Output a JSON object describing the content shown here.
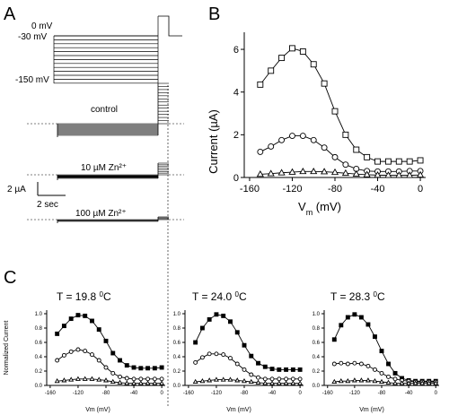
{
  "panel_letters": {
    "a": "A",
    "b": "B",
    "c": "C"
  },
  "panel_a": {
    "voltage_labels": [
      "0 mV",
      "-30 mV",
      "-150 mV"
    ],
    "trace_labels": [
      "control",
      "10 µM Zn²⁺",
      "100 µM Zn²⁺"
    ],
    "scale_current": "2 µA",
    "scale_time": "2 sec"
  },
  "chart_data": [
    {
      "type": "line",
      "panel": "B",
      "xlabel_main": "V",
      "xlabel_sub": "m",
      "xlabel_unit": " (mV)",
      "ylabel": "Current (µA)",
      "xlim": [
        -165,
        5
      ],
      "ylim": [
        0,
        6.8
      ],
      "xticks": [
        -160,
        -120,
        -80,
        -40,
        0
      ],
      "yticks": [
        0,
        2,
        4,
        6
      ],
      "grid": false,
      "x": [
        -150,
        -140,
        -130,
        -120,
        -110,
        -100,
        -90,
        -80,
        -70,
        -60,
        -50,
        -40,
        -30,
        -20,
        -10,
        0
      ],
      "series": [
        {
          "marker": "square",
          "values": [
            4.35,
            5.0,
            5.6,
            6.05,
            5.9,
            5.3,
            4.4,
            3.1,
            2.0,
            1.3,
            0.95,
            0.75,
            0.75,
            0.75,
            0.75,
            0.8
          ]
        },
        {
          "marker": "circle",
          "values": [
            1.2,
            1.45,
            1.75,
            1.95,
            1.95,
            1.75,
            1.4,
            0.95,
            0.6,
            0.4,
            0.3,
            0.28,
            0.28,
            0.28,
            0.3,
            0.3
          ]
        },
        {
          "marker": "triangle",
          "values": [
            0.15,
            0.18,
            0.22,
            0.25,
            0.28,
            0.28,
            0.27,
            0.24,
            0.2,
            0.16,
            0.13,
            0.11,
            0.1,
            0.1,
            0.1,
            0.12
          ]
        }
      ]
    },
    {
      "type": "line",
      "panel": "C1",
      "title_prefix": "T = 19.8 ",
      "title_sup": "0",
      "title_suffix": "C",
      "ylabel": "Normalized Current",
      "xlabel": "Vm (mV)",
      "xlim": [
        -165,
        5
      ],
      "ylim": [
        0,
        1.05
      ],
      "xticks": [
        -160,
        -120,
        -80,
        -40,
        0
      ],
      "yticks": [
        0.0,
        0.2,
        0.4,
        0.6,
        0.8,
        1.0
      ],
      "ytick_labels": [
        "0.0",
        "0.2",
        "0.4",
        "0.6",
        "0.8",
        "1.0"
      ],
      "grid": false,
      "x": [
        -150,
        -140,
        -130,
        -120,
        -110,
        -100,
        -90,
        -80,
        -70,
        -60,
        -50,
        -40,
        -30,
        -20,
        -10,
        0
      ],
      "series": [
        {
          "marker": "filled-square",
          "values": [
            0.72,
            0.83,
            0.93,
            0.98,
            0.97,
            0.9,
            0.78,
            0.62,
            0.45,
            0.35,
            0.28,
            0.25,
            0.24,
            0.24,
            0.24,
            0.25
          ]
        },
        {
          "marker": "circle",
          "values": [
            0.35,
            0.42,
            0.47,
            0.5,
            0.48,
            0.43,
            0.35,
            0.25,
            0.17,
            0.12,
            0.1,
            0.09,
            0.09,
            0.09,
            0.09,
            0.09
          ]
        },
        {
          "marker": "triangle",
          "values": [
            0.06,
            0.07,
            0.08,
            0.09,
            0.09,
            0.09,
            0.08,
            0.07,
            0.05,
            0.04,
            0.03,
            0.03,
            0.03,
            0.03,
            0.03,
            0.03
          ]
        }
      ]
    },
    {
      "type": "line",
      "panel": "C2",
      "title_prefix": "T = 24.0 ",
      "title_sup": "0",
      "title_suffix": "C",
      "xlabel": "Vm (mV)",
      "xlim": [
        -165,
        5
      ],
      "ylim": [
        0,
        1.05
      ],
      "xticks": [
        -160,
        -120,
        -80,
        -40,
        0
      ],
      "yticks": [
        0.0,
        0.2,
        0.4,
        0.6,
        0.8,
        1.0
      ],
      "ytick_labels": [
        "0.0",
        "0.2",
        "0.4",
        "0.6",
        "0.8",
        "1.0"
      ],
      "grid": false,
      "x": [
        -150,
        -140,
        -130,
        -120,
        -110,
        -100,
        -90,
        -80,
        -70,
        -60,
        -50,
        -40,
        -30,
        -20,
        -10,
        0
      ],
      "series": [
        {
          "marker": "filled-square",
          "values": [
            0.6,
            0.8,
            0.92,
            0.99,
            0.97,
            0.89,
            0.74,
            0.56,
            0.41,
            0.31,
            0.26,
            0.23,
            0.22,
            0.22,
            0.22,
            0.22
          ]
        },
        {
          "marker": "circle",
          "values": [
            0.32,
            0.39,
            0.44,
            0.44,
            0.43,
            0.38,
            0.3,
            0.22,
            0.15,
            0.11,
            0.09,
            0.09,
            0.09,
            0.09,
            0.09,
            0.09
          ]
        },
        {
          "marker": "triangle",
          "values": [
            0.05,
            0.06,
            0.07,
            0.08,
            0.08,
            0.08,
            0.07,
            0.06,
            0.05,
            0.04,
            0.03,
            0.03,
            0.03,
            0.03,
            0.03,
            0.03
          ]
        }
      ]
    },
    {
      "type": "line",
      "panel": "C3",
      "title_prefix": "T = 28.3 ",
      "title_sup": "0",
      "title_suffix": "C",
      "xlabel": "Vm (mV)",
      "xlim": [
        -165,
        5
      ],
      "ylim": [
        0,
        1.05
      ],
      "xticks": [
        -160,
        -120,
        -80,
        -40,
        0
      ],
      "yticks": [
        0.0,
        0.2,
        0.4,
        0.6,
        0.8,
        1.0
      ],
      "ytick_labels": [
        "0.0",
        "0.2",
        "0.4",
        "0.6",
        "0.8",
        "1.0"
      ],
      "grid": false,
      "x": [
        -150,
        -140,
        -130,
        -120,
        -110,
        -100,
        -90,
        -80,
        -70,
        -60,
        -50,
        -40,
        -30,
        -20,
        -10,
        0
      ],
      "series": [
        {
          "marker": "filled-square",
          "values": [
            0.64,
            0.84,
            0.95,
            0.99,
            0.95,
            0.85,
            0.68,
            0.48,
            0.3,
            0.17,
            0.1,
            0.07,
            0.06,
            0.06,
            0.06,
            0.06
          ]
        },
        {
          "marker": "circle",
          "values": [
            0.3,
            0.31,
            0.3,
            0.31,
            0.3,
            0.27,
            0.22,
            0.17,
            0.12,
            0.09,
            0.07,
            0.06,
            0.05,
            0.05,
            0.05,
            0.05
          ]
        },
        {
          "marker": "triangle",
          "values": [
            0.05,
            0.06,
            0.06,
            0.07,
            0.07,
            0.07,
            0.06,
            0.05,
            0.04,
            0.03,
            0.03,
            0.03,
            0.03,
            0.03,
            0.03,
            0.03
          ]
        }
      ]
    }
  ]
}
